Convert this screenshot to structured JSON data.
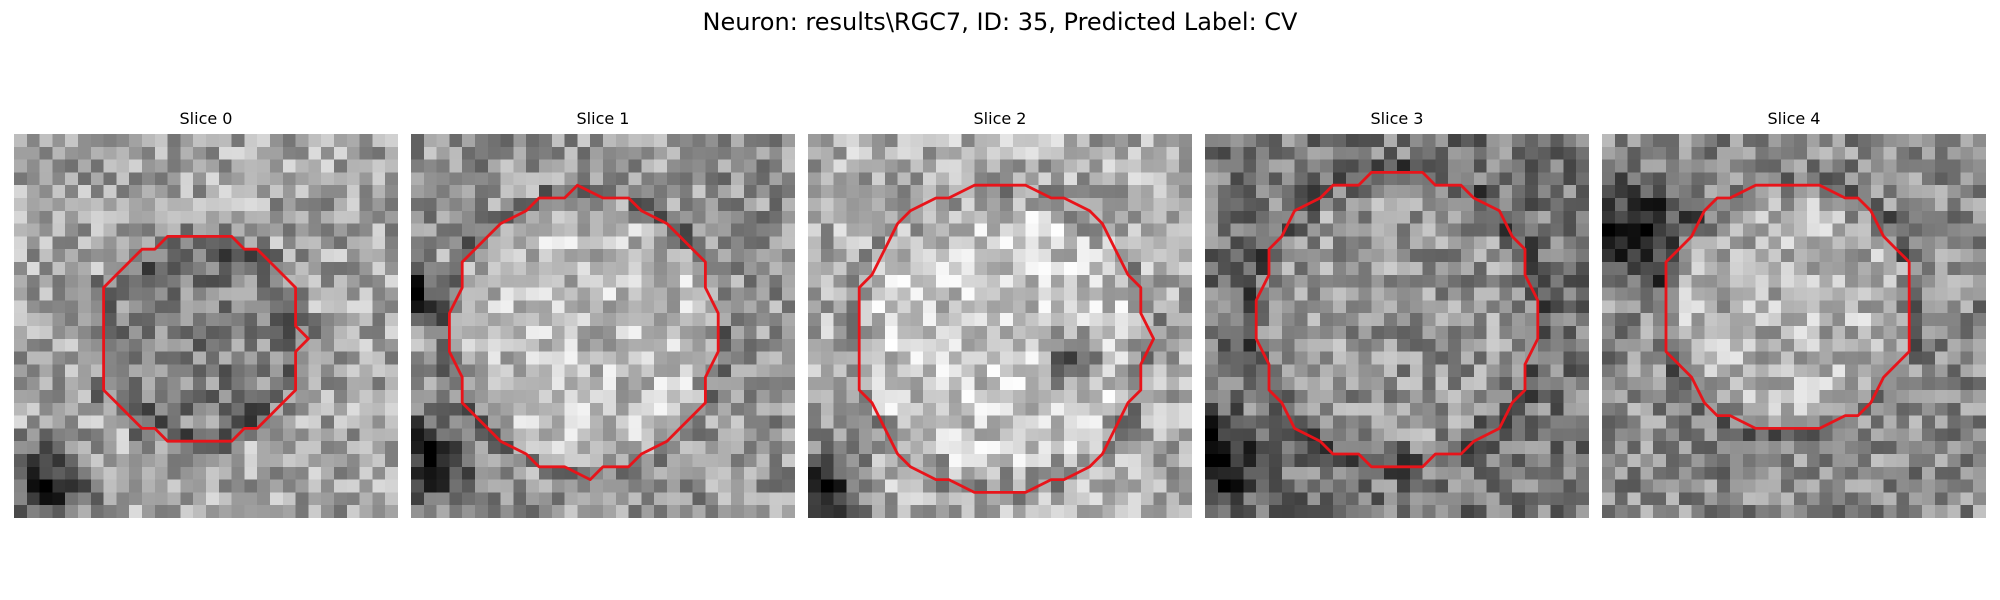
{
  "figure": {
    "title": "Neuron: results\\RGC7, ID: 35, Predicted Label: CV"
  },
  "panels": [
    {
      "title": "Slice 0"
    },
    {
      "title": "Slice 1"
    },
    {
      "title": "Slice 2"
    },
    {
      "title": "Slice 3"
    },
    {
      "title": "Slice 4"
    }
  ],
  "style": {
    "contour_color": "#e8141a",
    "colormap": "grayscale"
  }
}
